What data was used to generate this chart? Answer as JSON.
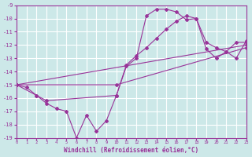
{
  "xlabel": "Windchill (Refroidissement éolien,°C)",
  "xlim": [
    0,
    23
  ],
  "ylim": [
    -19,
    -9
  ],
  "xticks": [
    0,
    1,
    2,
    3,
    4,
    5,
    6,
    7,
    8,
    9,
    10,
    11,
    12,
    13,
    14,
    15,
    16,
    17,
    18,
    19,
    20,
    21,
    22,
    23
  ],
  "yticks": [
    -9,
    -10,
    -11,
    -12,
    -13,
    -14,
    -15,
    -16,
    -17,
    -18,
    -19
  ],
  "bg_color": "#cce8e8",
  "line_color": "#993399",
  "grid_color": "#ffffff",
  "series": [
    {
      "x": [
        0,
        1,
        2,
        3,
        4,
        5,
        6,
        7,
        8,
        9,
        10,
        11,
        12,
        13,
        14,
        15,
        16,
        17,
        18,
        19,
        20,
        21,
        22,
        23
      ],
      "y": [
        -15,
        -15.2,
        -15.8,
        -16.4,
        -16.8,
        -17.0,
        -19.0,
        -17.3,
        -18.5,
        -17.7,
        -15.8,
        -13.6,
        -13.0,
        -9.8,
        -9.3,
        -9.3,
        -9.5,
        -10.1,
        -10.0,
        -12.3,
        -13.0,
        -12.5,
        -13.0,
        -11.7
      ]
    },
    {
      "x": [
        0,
        2,
        3,
        10,
        11,
        12,
        13,
        14,
        15,
        16,
        17,
        18,
        19,
        20,
        21,
        22,
        23
      ],
      "y": [
        -15,
        -15.8,
        -16.2,
        -15.8,
        -13.5,
        -12.8,
        -12.2,
        -11.5,
        -10.8,
        -10.2,
        -9.8,
        -10.0,
        -11.8,
        -12.2,
        -12.5,
        -11.8,
        -11.8
      ]
    },
    {
      "x": [
        0,
        23
      ],
      "y": [
        -15,
        -12.0
      ]
    },
    {
      "x": [
        0,
        10,
        23
      ],
      "y": [
        -15,
        -15.0,
        -12.2
      ]
    }
  ]
}
